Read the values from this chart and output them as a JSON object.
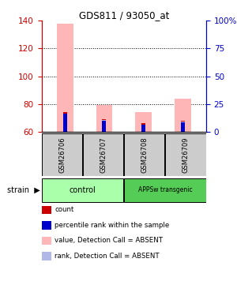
{
  "title": "GDS811 / 93050_at",
  "samples": [
    "GSM26706",
    "GSM26707",
    "GSM26708",
    "GSM26709"
  ],
  "ylim_left": [
    60,
    140
  ],
  "ylim_right": [
    0,
    100
  ],
  "yticks_left": [
    60,
    80,
    100,
    120,
    140
  ],
  "yticks_right": [
    0,
    25,
    50,
    75,
    100
  ],
  "ytick_labels_right": [
    "0",
    "25",
    "50",
    "75",
    "100%"
  ],
  "bar_bottom": 60,
  "value_absent_tops": [
    138,
    79,
    74,
    84
  ],
  "rank_absent_tops": [
    74,
    69,
    66,
    68
  ],
  "rank_present_tops": [
    73,
    68,
    65,
    67
  ],
  "count_tops": [
    73.2,
    68.2,
    65.2,
    67.2
  ],
  "color_count": "#cc0000",
  "color_rank_present": "#0000cc",
  "color_value_absent": "#ffb6b6",
  "color_rank_absent": "#b0b8e8",
  "color_group_light": "#aaffaa",
  "color_group_dark": "#55cc55",
  "color_sample_bg": "#cccccc",
  "left_axis_color": "#cc0000",
  "right_axis_color": "#0000cc",
  "group_spans": [
    [
      0,
      2,
      "control"
    ],
    [
      2,
      4,
      "APPSw transgenic"
    ]
  ],
  "legend_items": [
    [
      "#cc0000",
      "count"
    ],
    [
      "#0000cc",
      "percentile rank within the sample"
    ],
    [
      "#ffb6b6",
      "value, Detection Call = ABSENT"
    ],
    [
      "#b0b8e8",
      "rank, Detection Call = ABSENT"
    ]
  ]
}
